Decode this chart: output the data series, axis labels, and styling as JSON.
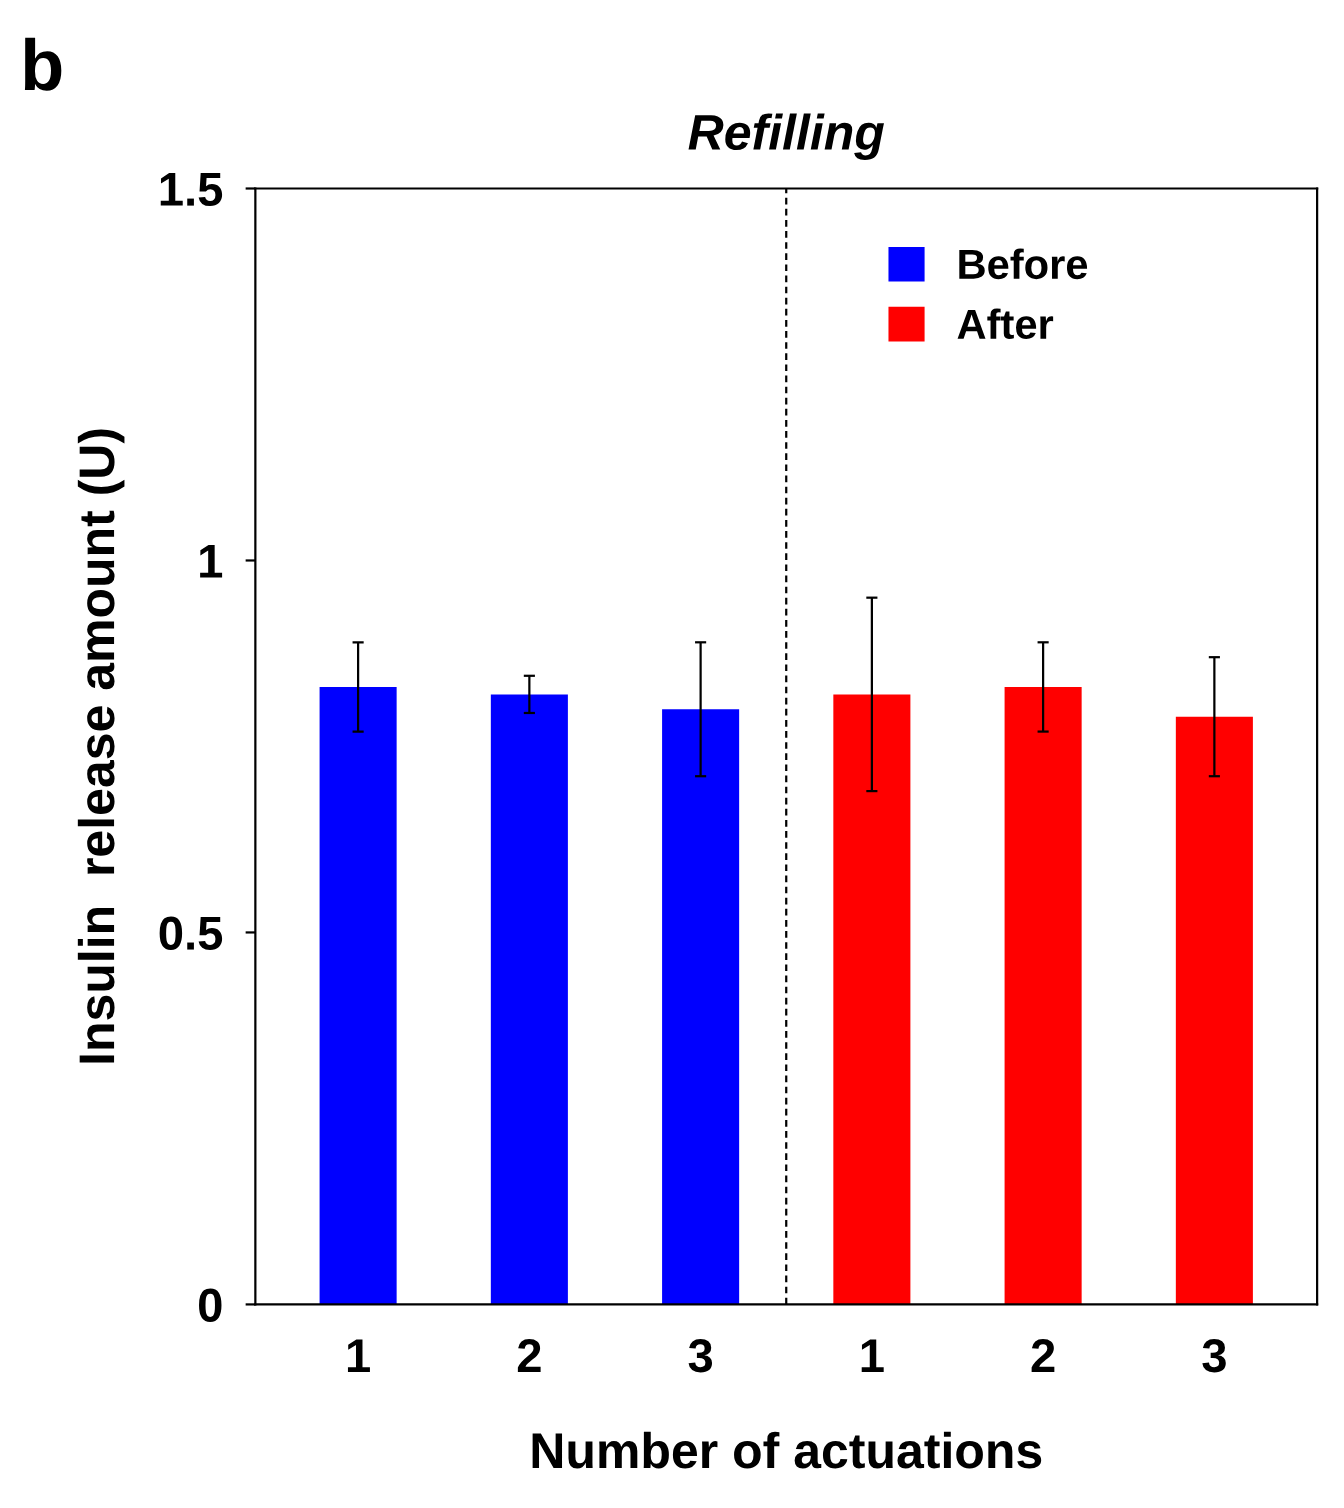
{
  "chart_data": {
    "type": "bar",
    "title": "Refilling",
    "xlabel": "Number of actuations",
    "ylabel": "Insulin  release amount (U)",
    "categories": [
      "1",
      "2",
      "3",
      "1",
      "2",
      "3"
    ],
    "series": [
      {
        "name": "Before",
        "color": "#0000ff",
        "values": [
          0.83,
          0.82,
          0.8,
          null,
          null,
          null
        ],
        "errors": [
          0.06,
          0.025,
          0.09,
          null,
          null,
          null
        ]
      },
      {
        "name": "After",
        "color": "#ff0000",
        "values": [
          null,
          null,
          null,
          0.82,
          0.83,
          0.79
        ],
        "errors": [
          null,
          null,
          null,
          0.13,
          0.06,
          0.08
        ]
      }
    ],
    "ylim": [
      0,
      1.5
    ],
    "yticks": [
      0,
      {
        "value": 0.5,
        "label": "0.5"
      },
      1,
      1.5
    ],
    "grid": false,
    "legend": "top right",
    "annotations": [
      "b"
    ]
  }
}
